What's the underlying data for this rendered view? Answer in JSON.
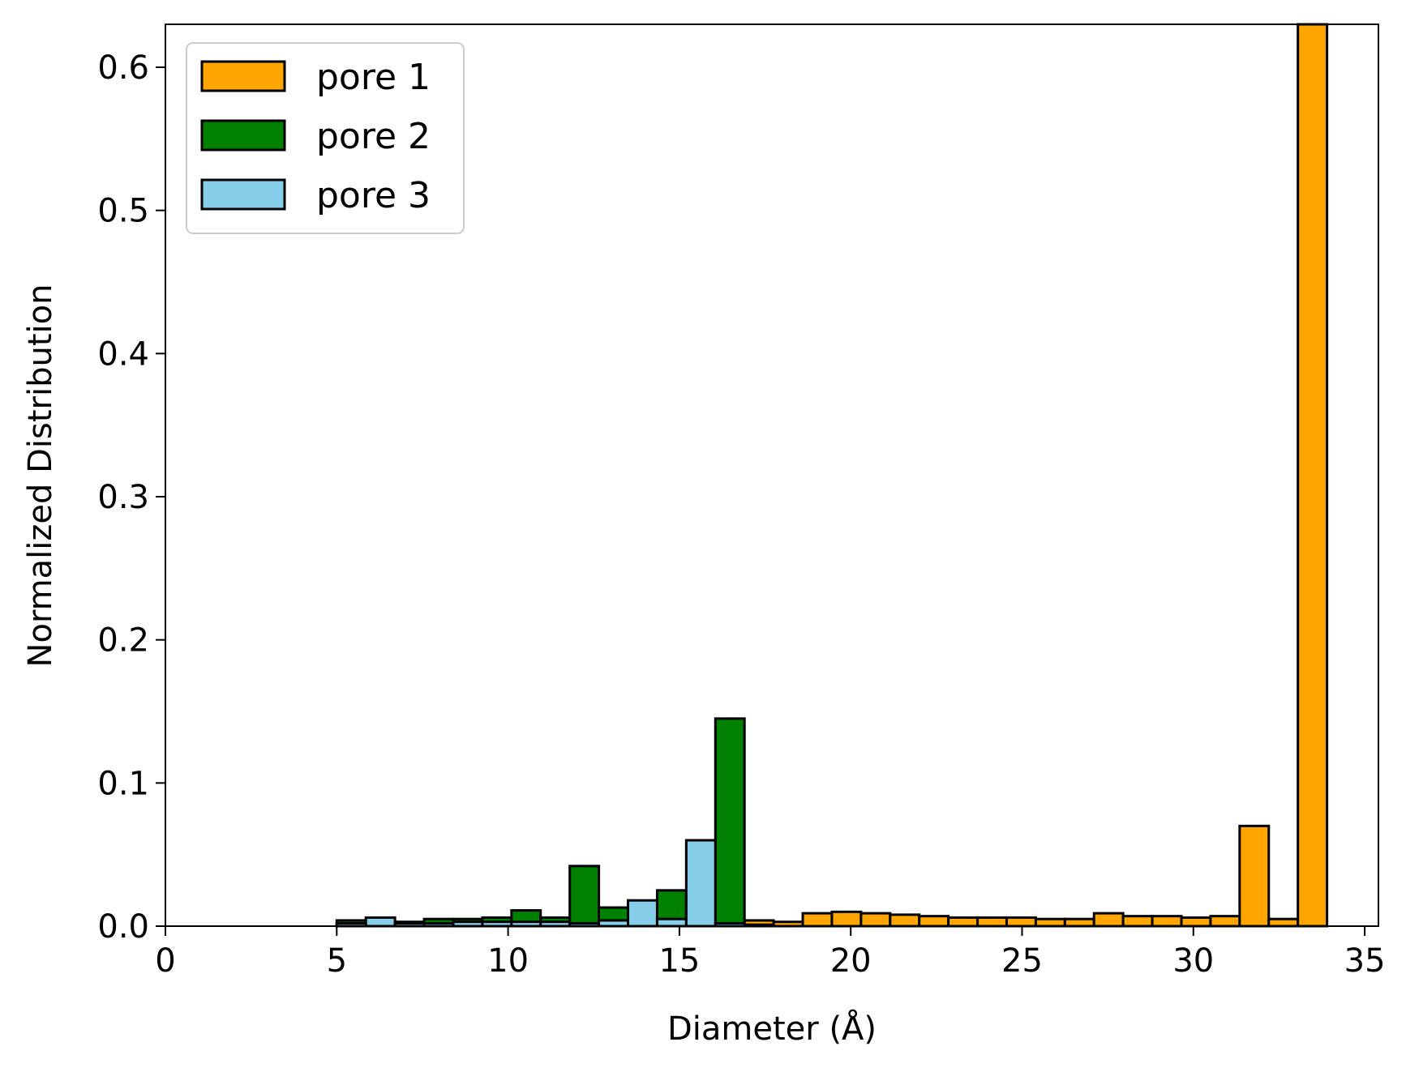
{
  "chart_data": {
    "type": "bar",
    "chart_kind": "histogram",
    "title": "",
    "xlabel": "Diameter (Å)",
    "ylabel": "Normalized Distribution",
    "xlim": [
      0,
      35.4
    ],
    "ylim": [
      0,
      0.63
    ],
    "xticks": [
      0,
      5,
      10,
      15,
      20,
      25,
      30,
      35
    ],
    "yticks": [
      0.0,
      0.1,
      0.2,
      0.3,
      0.4,
      0.5,
      0.6
    ],
    "xtick_labels": [
      "0",
      "5",
      "10",
      "15",
      "20",
      "25",
      "30",
      "35"
    ],
    "ytick_labels": [
      "0.0",
      "0.1",
      "0.2",
      "0.3",
      "0.4",
      "0.5",
      "0.6"
    ],
    "grid": false,
    "legend_position": "top-left",
    "bin_width": 0.85,
    "series": [
      {
        "name": "pore 1",
        "color": "#FFA500",
        "bins": [
          {
            "x0": 5.0,
            "value": 0.001
          },
          {
            "x0": 5.85,
            "value": 0.001
          },
          {
            "x0": 6.7,
            "value": 0.001
          },
          {
            "x0": 7.55,
            "value": 0.001
          },
          {
            "x0": 8.4,
            "value": 0.001
          },
          {
            "x0": 9.25,
            "value": 0.001
          },
          {
            "x0": 10.1,
            "value": 0.001
          },
          {
            "x0": 10.95,
            "value": 0.001
          },
          {
            "x0": 11.8,
            "value": 0.002
          },
          {
            "x0": 12.65,
            "value": 0.002
          },
          {
            "x0": 13.5,
            "value": 0.002
          },
          {
            "x0": 14.35,
            "value": 0.003
          },
          {
            "x0": 15.2,
            "value": 0.003
          },
          {
            "x0": 16.05,
            "value": 0.003
          },
          {
            "x0": 16.9,
            "value": 0.004
          },
          {
            "x0": 17.75,
            "value": 0.003
          },
          {
            "x0": 18.6,
            "value": 0.009
          },
          {
            "x0": 19.45,
            "value": 0.01
          },
          {
            "x0": 20.3,
            "value": 0.009
          },
          {
            "x0": 21.15,
            "value": 0.008
          },
          {
            "x0": 22.0,
            "value": 0.007
          },
          {
            "x0": 22.85,
            "value": 0.006
          },
          {
            "x0": 23.7,
            "value": 0.006
          },
          {
            "x0": 24.55,
            "value": 0.006
          },
          {
            "x0": 25.4,
            "value": 0.005
          },
          {
            "x0": 26.25,
            "value": 0.005
          },
          {
            "x0": 27.1,
            "value": 0.009
          },
          {
            "x0": 27.95,
            "value": 0.007
          },
          {
            "x0": 28.8,
            "value": 0.007
          },
          {
            "x0": 29.65,
            "value": 0.006
          },
          {
            "x0": 30.5,
            "value": 0.007
          },
          {
            "x0": 31.35,
            "value": 0.07
          },
          {
            "x0": 32.2,
            "value": 0.005
          },
          {
            "x0": 33.05,
            "value": 0.63
          }
        ]
      },
      {
        "name": "pore 2",
        "color": "#008000",
        "bins": [
          {
            "x0": 5.0,
            "value": 0.004
          },
          {
            "x0": 5.85,
            "value": 0.003
          },
          {
            "x0": 6.7,
            "value": 0.003
          },
          {
            "x0": 7.55,
            "value": 0.005
          },
          {
            "x0": 8.4,
            "value": 0.005
          },
          {
            "x0": 9.25,
            "value": 0.006
          },
          {
            "x0": 10.1,
            "value": 0.011
          },
          {
            "x0": 10.95,
            "value": 0.006
          },
          {
            "x0": 11.8,
            "value": 0.042
          },
          {
            "x0": 12.65,
            "value": 0.013
          },
          {
            "x0": 13.5,
            "value": 0.009
          },
          {
            "x0": 14.35,
            "value": 0.025
          },
          {
            "x0": 15.2,
            "value": 0.007
          },
          {
            "x0": 16.05,
            "value": 0.145
          },
          {
            "x0": 16.9,
            "value": 0.001
          }
        ]
      },
      {
        "name": "pore 3",
        "color": "#87CEEB",
        "bins": [
          {
            "x0": 5.0,
            "value": 0.002
          },
          {
            "x0": 5.85,
            "value": 0.006
          },
          {
            "x0": 6.7,
            "value": 0.002
          },
          {
            "x0": 7.55,
            "value": 0.002
          },
          {
            "x0": 8.4,
            "value": 0.003
          },
          {
            "x0": 9.25,
            "value": 0.003
          },
          {
            "x0": 10.1,
            "value": 0.003
          },
          {
            "x0": 10.95,
            "value": 0.003
          },
          {
            "x0": 11.8,
            "value": 0.002
          },
          {
            "x0": 12.65,
            "value": 0.004
          },
          {
            "x0": 13.5,
            "value": 0.018
          },
          {
            "x0": 14.35,
            "value": 0.005
          },
          {
            "x0": 15.2,
            "value": 0.06
          },
          {
            "x0": 16.05,
            "value": 0.002
          }
        ]
      }
    ]
  }
}
